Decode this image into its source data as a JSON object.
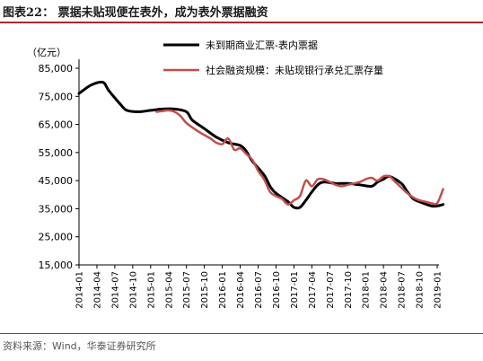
{
  "figure": {
    "title": "图表22： 票据未贴现便在表外，成为表外票据融资",
    "source": "资料来源：Wind，华泰证券研究所"
  },
  "colors": {
    "accent": "#b0282d",
    "series1": "#000000",
    "series2": "#c0504d"
  },
  "chart_data": {
    "type": "line",
    "ylabel": "（亿元）",
    "ylim": [
      15000,
      85000
    ],
    "yticks": [
      15000,
      25000,
      35000,
      45000,
      55000,
      65000,
      75000,
      85000
    ],
    "ytick_labels": [
      "15,000",
      "25,000",
      "35,000",
      "45,000",
      "55,000",
      "65,000",
      "75,000",
      "85,000"
    ],
    "xtick_labels": [
      "2014-01",
      "2014-04",
      "2014-07",
      "2014-10",
      "2015-01",
      "2015-04",
      "2015-07",
      "2015-10",
      "2016-01",
      "2016-04",
      "2016-07",
      "2016-10",
      "2017-01",
      "2017-04",
      "2017-07",
      "2017-10",
      "2018-01",
      "2018-04",
      "2018-07",
      "2018-10",
      "2019-01"
    ],
    "grid": false,
    "legend_position": "top-center",
    "series": [
      {
        "name": "未到期商业汇票-表内票据",
        "color": "#000000",
        "points": [
          [
            "2014-01",
            76000
          ],
          [
            "2014-03",
            79000
          ],
          [
            "2014-05",
            80000
          ],
          [
            "2014-06",
            77000
          ],
          [
            "2014-08",
            72000
          ],
          [
            "2014-09",
            70000
          ],
          [
            "2014-11",
            69500
          ],
          [
            "2015-01",
            70000
          ],
          [
            "2015-03",
            70500
          ],
          [
            "2015-05",
            70500
          ],
          [
            "2015-07",
            69500
          ],
          [
            "2015-08",
            66500
          ],
          [
            "2015-10",
            63500
          ],
          [
            "2015-12",
            60500
          ],
          [
            "2016-02",
            58500
          ],
          [
            "2016-04",
            57500
          ],
          [
            "2016-05",
            55500
          ],
          [
            "2016-06",
            52000
          ],
          [
            "2016-08",
            47000
          ],
          [
            "2016-09",
            43000
          ],
          [
            "2016-10",
            40500
          ],
          [
            "2016-12",
            37500
          ],
          [
            "2017-01",
            35500
          ],
          [
            "2017-02",
            35500
          ],
          [
            "2017-03",
            38000
          ],
          [
            "2017-04",
            41000
          ],
          [
            "2017-05",
            43500
          ],
          [
            "2017-06",
            44500
          ],
          [
            "2017-08",
            44000
          ],
          [
            "2017-10",
            44000
          ],
          [
            "2017-12",
            43500
          ],
          [
            "2018-02",
            43000
          ],
          [
            "2018-03",
            44500
          ],
          [
            "2018-04",
            45500
          ],
          [
            "2018-05",
            46500
          ],
          [
            "2018-07",
            44000
          ],
          [
            "2018-08",
            41000
          ],
          [
            "2018-09",
            38500
          ],
          [
            "2018-10",
            37500
          ],
          [
            "2018-12",
            36000
          ],
          [
            "2019-01",
            36000
          ],
          [
            "2019-02",
            36500
          ]
        ]
      },
      {
        "name": "社会融资规模：未贴现银行承兑汇票存量",
        "color": "#c0504d",
        "points": [
          [
            "2015-02",
            69500
          ],
          [
            "2015-03",
            69800
          ],
          [
            "2015-04",
            70000
          ],
          [
            "2015-05",
            69500
          ],
          [
            "2015-06",
            68000
          ],
          [
            "2015-07",
            65500
          ],
          [
            "2015-09",
            62500
          ],
          [
            "2015-11",
            60000
          ],
          [
            "2015-12",
            58500
          ],
          [
            "2016-01",
            58000
          ],
          [
            "2016-02",
            60000
          ],
          [
            "2016-03",
            56000
          ],
          [
            "2016-04",
            56500
          ],
          [
            "2016-05",
            54500
          ],
          [
            "2016-06",
            52500
          ],
          [
            "2016-07",
            48500
          ],
          [
            "2016-08",
            45500
          ],
          [
            "2016-09",
            41000
          ],
          [
            "2016-10",
            39500
          ],
          [
            "2016-11",
            38500
          ],
          [
            "2016-12",
            36500
          ],
          [
            "2017-01",
            38000
          ],
          [
            "2017-02",
            39500
          ],
          [
            "2017-03",
            45000
          ],
          [
            "2017-04",
            43000
          ],
          [
            "2017-05",
            45500
          ],
          [
            "2017-06",
            45500
          ],
          [
            "2017-07",
            44500
          ],
          [
            "2017-08",
            43500
          ],
          [
            "2017-09",
            43000
          ],
          [
            "2017-10",
            43500
          ],
          [
            "2017-12",
            44500
          ],
          [
            "2018-01",
            45500
          ],
          [
            "2018-02",
            46000
          ],
          [
            "2018-03",
            45000
          ],
          [
            "2018-04",
            46500
          ],
          [
            "2018-05",
            46500
          ],
          [
            "2018-06",
            44500
          ],
          [
            "2018-07",
            42500
          ],
          [
            "2018-08",
            40500
          ],
          [
            "2018-09",
            39000
          ],
          [
            "2018-10",
            38000
          ],
          [
            "2018-11",
            37500
          ],
          [
            "2018-12",
            37000
          ],
          [
            "2019-01",
            37000
          ],
          [
            "2019-02",
            42000
          ]
        ]
      }
    ]
  }
}
